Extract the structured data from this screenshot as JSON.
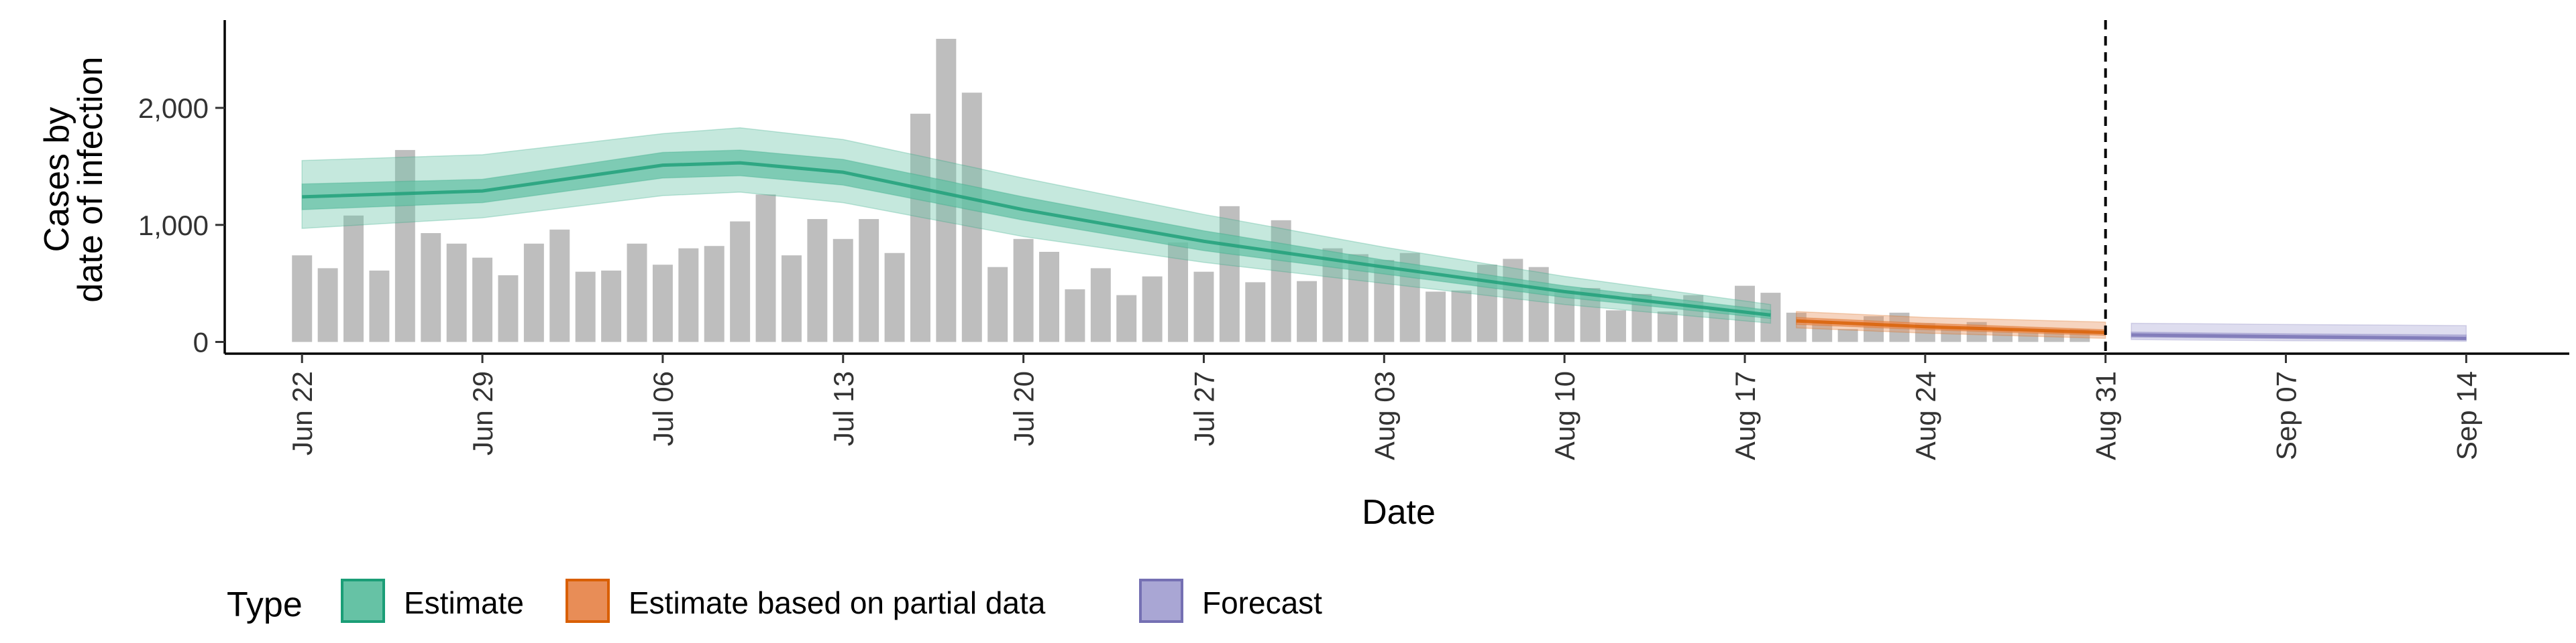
{
  "chart_data": {
    "type": "bar",
    "xlabel": "Date",
    "ylabel": [
      "Cases by",
      "date of infection"
    ],
    "x_start": "2020-06-22",
    "x_ticks": [
      "Jun 22",
      "Jun 29",
      "Jul 06",
      "Jul 13",
      "Jul 20",
      "Jul 27",
      "Aug 03",
      "Aug 10",
      "Aug 17",
      "Aug 24",
      "Aug 31",
      "Sep 07",
      "Sep 14"
    ],
    "x_range": [
      "2020-06-19",
      "2020-09-18"
    ],
    "y_ticks": [
      0,
      1000,
      2000
    ],
    "y_tick_labels": [
      "0",
      "1,000",
      "2,000"
    ],
    "ylim": [
      -100,
      2750
    ],
    "vline_date": "2020-08-31",
    "bars": [
      740,
      630,
      1080,
      610,
      1640,
      930,
      840,
      720,
      570,
      840,
      960,
      600,
      610,
      840,
      660,
      800,
      820,
      1030,
      1260,
      740,
      1050,
      880,
      1050,
      760,
      1950,
      2590,
      2130,
      640,
      880,
      770,
      450,
      630,
      400,
      560,
      850,
      600,
      1160,
      510,
      1040,
      520,
      800,
      750,
      700,
      760,
      430,
      440,
      660,
      710,
      640,
      440,
      460,
      270,
      410,
      260,
      400,
      280,
      480,
      420,
      250,
      180,
      110,
      220,
      250,
      160,
      130,
      170,
      110,
      80,
      100,
      110
    ],
    "bar_color": "#bebebe",
    "legend_title": "Type",
    "series": [
      {
        "name": "Estimate",
        "color": "#1b9e77",
        "fill": "#66c2a5",
        "x": [
          "2020-06-22",
          "2020-06-29",
          "2020-07-06",
          "2020-07-09",
          "2020-07-13",
          "2020-07-20",
          "2020-07-27",
          "2020-08-03",
          "2020-08-10",
          "2020-08-18"
        ],
        "median": [
          1240,
          1290,
          1510,
          1530,
          1450,
          1130,
          860,
          640,
          430,
          230
        ],
        "lower50": [
          1130,
          1190,
          1400,
          1420,
          1340,
          1040,
          780,
          580,
          380,
          200
        ],
        "upper50": [
          1350,
          1390,
          1620,
          1640,
          1560,
          1240,
          950,
          700,
          480,
          270
        ],
        "lower90": [
          970,
          1060,
          1250,
          1280,
          1190,
          900,
          680,
          500,
          320,
          160
        ],
        "upper90": [
          1550,
          1600,
          1780,
          1830,
          1730,
          1400,
          1090,
          810,
          560,
          320
        ]
      },
      {
        "name": "Estimate based on partial data",
        "color": "#d95f02",
        "fill": "#e88d57",
        "x": [
          "2020-08-19",
          "2020-08-24",
          "2020-08-31"
        ],
        "median": [
          180,
          130,
          80
        ],
        "lower50": [
          150,
          105,
          55
        ],
        "upper50": [
          210,
          160,
          105
        ],
        "lower90": [
          120,
          75,
          30
        ],
        "upper90": [
          260,
          210,
          170
        ]
      },
      {
        "name": "Forecast",
        "color": "#7570b3",
        "fill": "#a9a6d4",
        "x": [
          "2020-09-01",
          "2020-09-07",
          "2020-09-14"
        ],
        "median": [
          60,
          45,
          30
        ],
        "lower50": [
          40,
          28,
          15
        ],
        "upper50": [
          85,
          70,
          60
        ],
        "lower90": [
          20,
          10,
          5
        ],
        "upper90": [
          160,
          150,
          140
        ]
      }
    ]
  }
}
